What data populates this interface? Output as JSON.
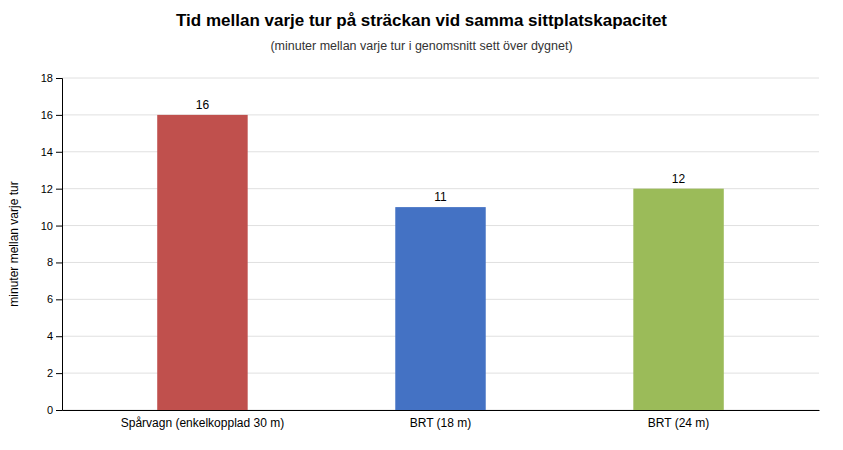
{
  "chart_data": {
    "type": "bar",
    "title": "Tid mellan varje tur på sträckan vid samma sittplatskapacitet",
    "subtitle": "(minuter mellan varje tur i genomsnitt sett över dygnet)",
    "categories": [
      "Spårvagn (enkelkopplad 30 m)",
      "BRT (18 m)",
      "BRT (24 m)"
    ],
    "values": [
      16,
      11,
      12
    ],
    "colors": [
      "#c0504d",
      "#4472c4",
      "#9bbb59"
    ],
    "y_label": "minuter mellan varje tur",
    "ylim": [
      0,
      18
    ],
    "yticks": [
      0,
      2,
      4,
      6,
      8,
      10,
      12,
      14,
      16,
      18
    ],
    "grid": true,
    "data_labels": true
  }
}
